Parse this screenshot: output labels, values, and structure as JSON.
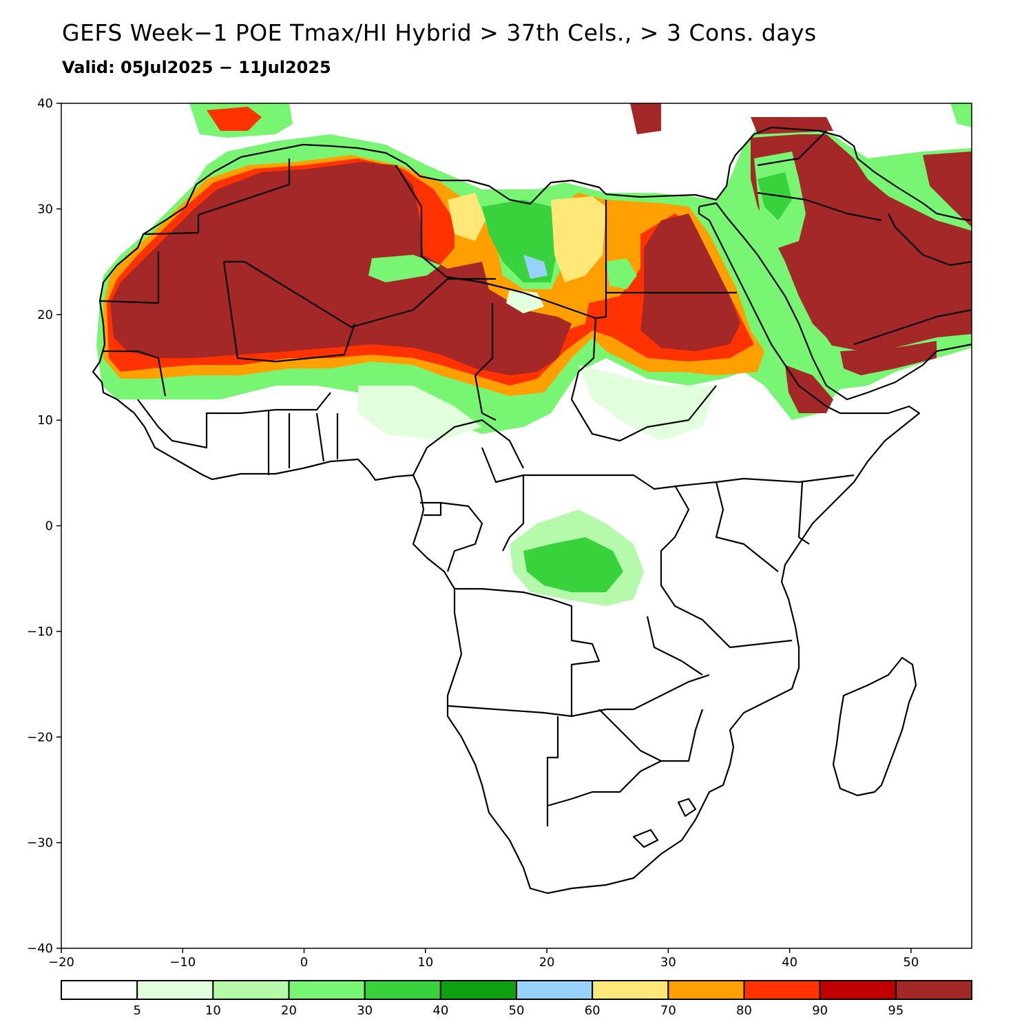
{
  "title": "GEFS Week−1 POE Tmax/HI Hybrid > 37th Cels., > 3 Cons. days",
  "subtitle": "Valid: 05Jul2025 − 11Jul2025",
  "map": {
    "lon_range": [
      -20,
      55
    ],
    "lat_range": [
      -40,
      40
    ],
    "lon_ticks": [
      "−20",
      "−10",
      "0",
      "10",
      "20",
      "30",
      "40",
      "50"
    ],
    "lat_ticks": [
      "40",
      "30",
      "20",
      "10",
      "0",
      "−10",
      "−20",
      "−30",
      "−40"
    ],
    "region": "Africa and Arabian Peninsula"
  },
  "legend": {
    "colors": [
      "#ffffff",
      "#e1ffdc",
      "#b4faaa",
      "#78f573",
      "#37d23c",
      "#0fa00f",
      "#96d2fa",
      "#ffe878",
      "#ffa000",
      "#ff3200",
      "#c00000",
      "#a52828"
    ],
    "labels": [
      "5",
      "10",
      "20",
      "30",
      "40",
      "50",
      "60",
      "70",
      "80",
      "90",
      "95"
    ]
  }
}
